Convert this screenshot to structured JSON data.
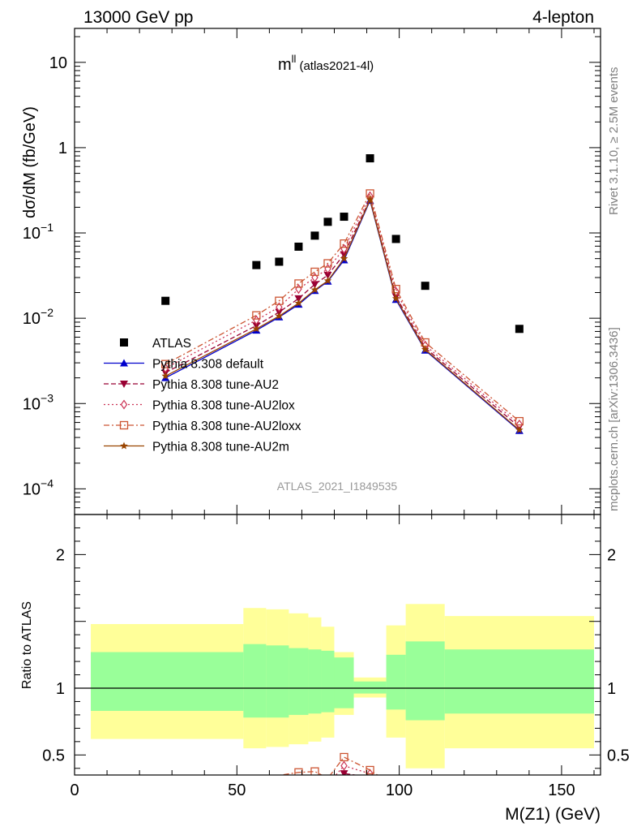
{
  "header": {
    "left": "13000 GeV pp",
    "right": "4-lepton"
  },
  "side_labels": {
    "rivet": "Rivet 3.1.10, ≥ 2.5M events",
    "mcplots": "mcplots.cern.ch [arXiv:1306.3436]"
  },
  "chart_data": {
    "type": "scatter",
    "title_main": "m",
    "title_sup": "ll",
    "title_sub": "(atlas2021-4l)",
    "watermark": "ATLAS_2021_I1849535",
    "xlabel": "M(Z1) (GeV)",
    "ylabel": "dσ/dM (fb/GeV)",
    "ratio_ylabel": "Ratio to ATLAS",
    "xlim": [
      0,
      162
    ],
    "ylim": [
      5e-05,
      25
    ],
    "yscale": "log",
    "ratio_ylim": [
      0.35,
      2.3
    ],
    "x_ticks": [
      0,
      50,
      100,
      150
    ],
    "x_tick_labels": [
      "0",
      "50",
      "100",
      "150"
    ],
    "y_ticks": [
      0.0001,
      0.001,
      0.01,
      0.1,
      1,
      10
    ],
    "y_tick_labels": [
      {
        "base": "10",
        "exp": "−4"
      },
      {
        "base": "10",
        "exp": "−3"
      },
      {
        "base": "10",
        "exp": "−2"
      },
      {
        "base": "10",
        "exp": "−1"
      },
      {
        "base": "1",
        "exp": ""
      },
      {
        "base": "10",
        "exp": ""
      }
    ],
    "ratio_ticks": [
      0.5,
      1,
      2
    ],
    "ratio_tick_labels": [
      "0.5",
      "1",
      "2"
    ],
    "data": {
      "name": "ATLAS",
      "x": [
        28,
        56,
        63,
        69,
        74,
        78,
        83,
        91,
        99,
        108,
        137
      ],
      "y": [
        0.016,
        0.042,
        0.046,
        0.069,
        0.093,
        0.135,
        0.155,
        0.75,
        0.085,
        0.024,
        0.0075
      ]
    },
    "bands": {
      "edges": [
        5,
        52,
        59,
        66,
        72,
        76,
        80,
        86,
        96,
        102,
        114,
        160
      ],
      "inner_lo": [
        0.83,
        0.78,
        0.78,
        0.8,
        0.81,
        0.82,
        0.85,
        0.96,
        0.84,
        0.76,
        0.81
      ],
      "inner_hi": [
        1.27,
        1.33,
        1.32,
        1.3,
        1.29,
        1.28,
        1.23,
        1.05,
        1.25,
        1.35,
        1.29
      ],
      "outer_lo": [
        0.62,
        0.55,
        0.56,
        0.58,
        0.6,
        0.63,
        0.8,
        0.93,
        0.63,
        0.4,
        0.55
      ],
      "outer_hi": [
        1.48,
        1.6,
        1.59,
        1.56,
        1.53,
        1.46,
        1.27,
        1.08,
        1.47,
        1.63,
        1.54
      ]
    },
    "series": [
      {
        "name": "Pythia 8.308 default",
        "color": "#0000cc",
        "marker": "triangle-up",
        "dash": "",
        "x": [
          28,
          56,
          63,
          69,
          74,
          78,
          83,
          91,
          99,
          108,
          137
        ],
        "y": [
          0.002,
          0.0072,
          0.0103,
          0.0145,
          0.021,
          0.027,
          0.048,
          0.24,
          0.0165,
          0.0042,
          0.00048
        ]
      },
      {
        "name": "Pythia 8.308 tune-AU2",
        "color": "#990033",
        "marker": "triangle-down",
        "dash": "6,3",
        "x": [
          28,
          56,
          63,
          69,
          74,
          78,
          83,
          91,
          99,
          108,
          137
        ],
        "y": [
          0.0023,
          0.0082,
          0.0118,
          0.017,
          0.025,
          0.032,
          0.056,
          0.25,
          0.018,
          0.0045,
          0.00053
        ]
      },
      {
        "name": "Pythia 8.308 tune-AU2lox",
        "color": "#cc3355",
        "marker": "diamond",
        "dash": "2,3",
        "x": [
          28,
          56,
          63,
          69,
          74,
          78,
          83,
          91,
          99,
          108,
          137
        ],
        "y": [
          0.0026,
          0.0095,
          0.0135,
          0.022,
          0.03,
          0.038,
          0.065,
          0.27,
          0.0205,
          0.0048,
          0.00057
        ]
      },
      {
        "name": "Pythia 8.308 tune-AU2loxx",
        "color": "#cc5533",
        "marker": "square-open",
        "dash": "7,3,2,3",
        "x": [
          28,
          56,
          63,
          69,
          74,
          78,
          83,
          91,
          99,
          108,
          137
        ],
        "y": [
          0.0029,
          0.0108,
          0.016,
          0.0255,
          0.035,
          0.044,
          0.075,
          0.29,
          0.022,
          0.0052,
          0.00062
        ]
      },
      {
        "name": "Pythia 8.308 tune-AU2m",
        "color": "#994400",
        "marker": "star",
        "dash": "",
        "x": [
          28,
          56,
          63,
          69,
          74,
          78,
          83,
          91,
          99,
          108,
          137
        ],
        "y": [
          0.0021,
          0.0075,
          0.0106,
          0.015,
          0.0215,
          0.0275,
          0.05,
          0.245,
          0.017,
          0.0043,
          0.00049
        ]
      }
    ]
  }
}
